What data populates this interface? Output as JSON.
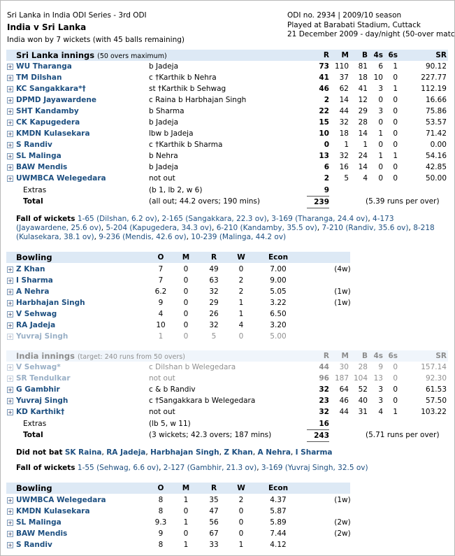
{
  "header": {
    "series": "Sri Lanka in India ODI Series - 3rd ODI",
    "title": "India v Sri Lanka",
    "result": "India won by 7 wickets (with 45 balls remaining)",
    "odi_no": "ODI no. 2934 | 2009/10 season",
    "venue": "Played at Barabati Stadium, Cuttack",
    "date": "21 December 2009 - day/night (50-over match)"
  },
  "innings": [
    {
      "title": "Sri Lanka innings",
      "subtitle": "(50 overs maximum)",
      "columns": [
        "R",
        "M",
        "B",
        "4s",
        "6s",
        "SR"
      ],
      "batting": [
        {
          "name": "WU Tharanga",
          "dismissal": "b Jadeja",
          "stats": [
            "73",
            "110",
            "81",
            "6",
            "1",
            "90.12"
          ]
        },
        {
          "name": "TM Dilshan",
          "dismissal": "c †Karthik b Nehra",
          "stats": [
            "41",
            "37",
            "18",
            "10",
            "0",
            "227.77"
          ]
        },
        {
          "name": "KC Sangakkara*†",
          "dismissal": "st †Karthik b Sehwag",
          "stats": [
            "46",
            "62",
            "41",
            "3",
            "1",
            "112.19"
          ]
        },
        {
          "name": "DPMD Jayawardene",
          "dismissal": "c Raina b Harbhajan Singh",
          "stats": [
            "2",
            "14",
            "12",
            "0",
            "0",
            "16.66"
          ]
        },
        {
          "name": "SHT Kandamby",
          "dismissal": "b Sharma",
          "stats": [
            "22",
            "44",
            "29",
            "3",
            "0",
            "75.86"
          ]
        },
        {
          "name": "CK Kapugedera",
          "dismissal": "b Jadeja",
          "stats": [
            "15",
            "32",
            "28",
            "0",
            "0",
            "53.57"
          ]
        },
        {
          "name": "KMDN Kulasekara",
          "dismissal": "lbw b Jadeja",
          "stats": [
            "10",
            "18",
            "14",
            "1",
            "0",
            "71.42"
          ]
        },
        {
          "name": "S Randiv",
          "dismissal": "c †Karthik b Sharma",
          "stats": [
            "0",
            "1",
            "1",
            "0",
            "0",
            "0.00"
          ]
        },
        {
          "name": "SL Malinga",
          "dismissal": "b Nehra",
          "stats": [
            "13",
            "32",
            "24",
            "1",
            "1",
            "54.16"
          ]
        },
        {
          "name": "BAW Mendis",
          "dismissal": "b Jadeja",
          "stats": [
            "6",
            "16",
            "14",
            "0",
            "0",
            "42.85"
          ]
        },
        {
          "name": "UWMBCA Welegedara",
          "dismissal": "not out",
          "stats": [
            "2",
            "5",
            "4",
            "0",
            "0",
            "50.00"
          ]
        }
      ],
      "extras": {
        "label": "Extras",
        "detail": "(b 1, lb 2, w 6)",
        "runs": "9"
      },
      "total": {
        "label": "Total",
        "detail": "(all out; 44.2 overs; 190 mins)",
        "runs": "239",
        "rate": "(5.39 runs per over)"
      },
      "fall_of_wickets": {
        "label": "Fall of wickets",
        "entries": [
          "1-65 (Dilshan, 6.2 ov)",
          "2-165 (Sangakkara, 22.3 ov)",
          "3-169 (Tharanga, 24.4 ov)",
          "4-173 (Jayawardene, 25.6 ov)",
          "5-204 (Kapugedera, 34.3 ov)",
          "6-210 (Kandamby, 35.5 ov)",
          "7-210 (Randiv, 35.6 ov)",
          "8-218 (Kulasekara, 38.1 ov)",
          "9-236 (Mendis, 42.6 ov)",
          "10-239 (Malinga, 44.2 ov)"
        ]
      },
      "bowling": {
        "title": "Bowling",
        "columns": [
          "O",
          "M",
          "R",
          "W",
          "Econ"
        ],
        "rows": [
          {
            "name": "Z Khan",
            "stats": [
              "7",
              "0",
              "49",
              "0",
              "7.00"
            ],
            "extras": "(4w)"
          },
          {
            "name": "I Sharma",
            "stats": [
              "7",
              "0",
              "63",
              "2",
              "9.00"
            ]
          },
          {
            "name": "A Nehra",
            "stats": [
              "6.2",
              "0",
              "32",
              "2",
              "5.05"
            ],
            "extras": "(1w)"
          },
          {
            "name": "Harbhajan Singh",
            "stats": [
              "9",
              "0",
              "29",
              "1",
              "3.22"
            ],
            "extras": "(1w)"
          },
          {
            "name": "V Sehwag",
            "stats": [
              "4",
              "0",
              "26",
              "1",
              "6.50"
            ]
          },
          {
            "name": "RA Jadeja",
            "stats": [
              "10",
              "0",
              "32",
              "4",
              "3.20"
            ]
          },
          {
            "name": "Yuvraj Singh",
            "stats": [
              "1",
              "0",
              "5",
              "0",
              "5.00"
            ]
          }
        ]
      }
    },
    {
      "title": "India innings",
      "subtitle": "(target: 240 runs from 50 overs)",
      "columns": [
        "R",
        "M",
        "B",
        "4s",
        "6s",
        "SR"
      ],
      "batting": [
        {
          "name": "V Sehwag*",
          "dismissal": "c Dilshan b Welegedara",
          "stats": [
            "44",
            "30",
            "28",
            "9",
            "0",
            "157.14"
          ]
        },
        {
          "name": "SR Tendulkar",
          "dismissal": "not out",
          "stats": [
            "96",
            "187",
            "104",
            "13",
            "0",
            "92.30"
          ]
        },
        {
          "name": "G Gambhir",
          "dismissal": "c & b Randiv",
          "stats": [
            "32",
            "64",
            "52",
            "3",
            "0",
            "61.53"
          ]
        },
        {
          "name": "Yuvraj Singh",
          "dismissal": "c †Sangakkara b Welegedara",
          "stats": [
            "23",
            "46",
            "40",
            "3",
            "0",
            "57.50"
          ]
        },
        {
          "name": "KD Karthik†",
          "dismissal": "not out",
          "stats": [
            "32",
            "44",
            "31",
            "4",
            "1",
            "103.22"
          ]
        }
      ],
      "extras": {
        "label": "Extras",
        "detail": "(lb 5, w 11)",
        "runs": "16"
      },
      "total": {
        "label": "Total",
        "detail": "(3 wickets; 42.3 overs; 187 mins)",
        "runs": "243",
        "rate": "(5.71 runs per over)"
      },
      "did_not_bat": {
        "label": "Did not bat",
        "players": [
          "SK Raina",
          "RA Jadeja",
          "Harbhajan Singh",
          "Z Khan",
          "A Nehra",
          "I Sharma"
        ]
      },
      "fall_of_wickets": {
        "label": "Fall of wickets",
        "entries": [
          "1-55 (Sehwag, 6.6 ov)",
          "2-127 (Gambhir, 21.3 ov)",
          "3-169 (Yuvraj Singh, 32.5 ov)"
        ]
      },
      "bowling": {
        "title": "Bowling",
        "columns": [
          "O",
          "M",
          "R",
          "W",
          "Econ"
        ],
        "rows": [
          {
            "name": "UWMBCA Welegedara",
            "stats": [
              "8",
              "1",
              "35",
              "2",
              "4.37"
            ],
            "extras": "(1w)"
          },
          {
            "name": "KMDN Kulasekara",
            "stats": [
              "8",
              "0",
              "47",
              "0",
              "5.87"
            ]
          },
          {
            "name": "SL Malinga",
            "stats": [
              "9.3",
              "1",
              "56",
              "0",
              "5.89"
            ],
            "extras": "(2w)"
          },
          {
            "name": "BAW Mendis",
            "stats": [
              "9",
              "0",
              "67",
              "0",
              "7.44"
            ],
            "extras": "(2w)"
          },
          {
            "name": "S Randiv",
            "stats": [
              "8",
              "1",
              "33",
              "1",
              "4.12"
            ]
          }
        ]
      }
    }
  ]
}
